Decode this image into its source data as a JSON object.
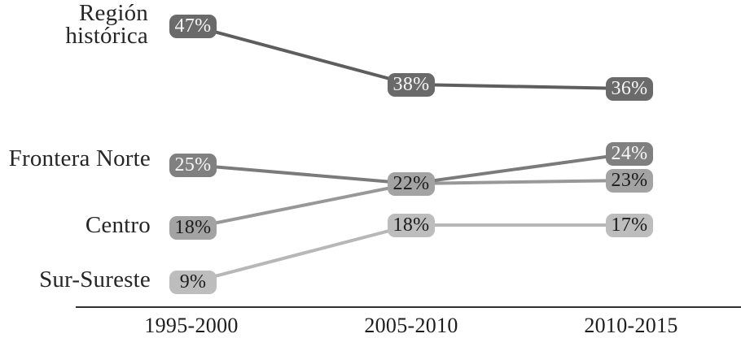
{
  "chart_data": {
    "type": "line",
    "title": "",
    "xlabel": "",
    "ylabel": "",
    "unit": "%",
    "grid": false,
    "legend_position": "row-labels-left",
    "value_labels_shown": true,
    "categories": [
      "1995-2000",
      "2005-2010",
      "2010-2015"
    ],
    "series": [
      {
        "name": "Región histórica",
        "values": [
          47,
          38,
          36
        ],
        "line_color": "#5e5e5e",
        "badge_bg": "#6a6a6a",
        "badge_text_color": "#f7f7f7"
      },
      {
        "name": "Frontera Norte",
        "values": [
          25,
          22,
          24
        ],
        "line_color": "#7b7b7b",
        "badge_bg": "#808080",
        "badge_text_color": "#f7f7f7"
      },
      {
        "name": "Centro",
        "values": [
          18,
          22,
          23
        ],
        "line_color": "#989898",
        "badge_bg": "#a3a3a3",
        "badge_text_color": "#1c1c1c"
      },
      {
        "name": "Sur-Sureste",
        "values": [
          9,
          18,
          17
        ],
        "line_color": "#b7b7b7",
        "badge_bg": "#bdbdbd",
        "badge_text_color": "#1c1c1c"
      }
    ],
    "shared_points": [
      {
        "series": [
          "Frontera Norte",
          "Centro"
        ],
        "category": "2005-2010",
        "value": 22
      }
    ],
    "axis": {
      "baseline_color": "#2f2f2f",
      "tick_label_color": "#1d1d1d"
    }
  }
}
